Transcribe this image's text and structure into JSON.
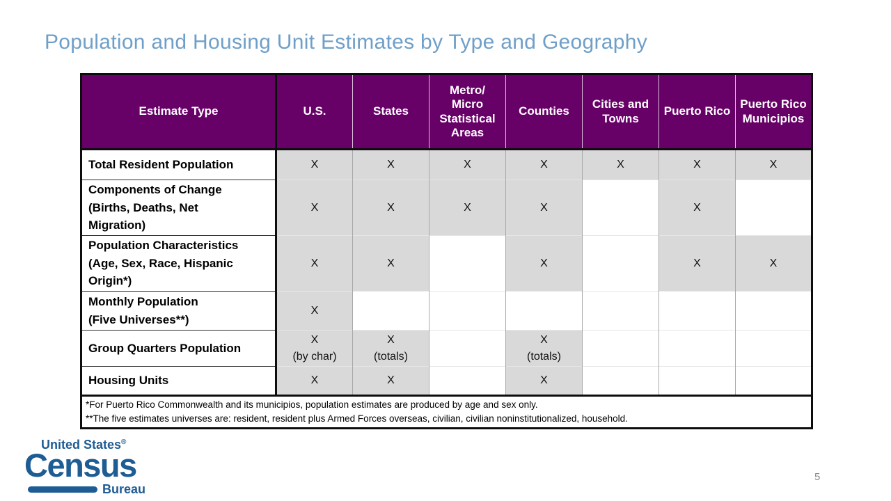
{
  "slide": {
    "title": "Population and Housing Unit Estimates by Type and Geography",
    "page_number": "5"
  },
  "colors": {
    "header_bg": "#670167",
    "shaded_cell": "#d9d9d9",
    "title_text": "#6f9fc8",
    "logo_blue": "#1e5c94",
    "page_number_text": "#8a8a8a"
  },
  "table": {
    "columns": [
      "Estimate Type",
      "U.S.",
      "States",
      "Metro/\nMicro\nStatistical\nAreas",
      "Counties",
      "Cities and\nTowns",
      "Puerto Rico",
      "Puerto Rico\nMunicipios"
    ],
    "rows": [
      {
        "label": "Total Resident Population",
        "cells": [
          "X",
          "X",
          "X",
          "X",
          "X",
          "X",
          "X"
        ]
      },
      {
        "label": "Components of Change\n(Births, Deaths, Net\nMigration)",
        "cells": [
          "X",
          "X",
          "X",
          "X",
          "",
          "X",
          ""
        ]
      },
      {
        "label": "Population Characteristics\n(Age, Sex, Race, Hispanic\nOrigin*)",
        "cells": [
          "X",
          "X",
          "",
          "X",
          "",
          "X",
          "X"
        ]
      },
      {
        "label": "Monthly Population\n(Five Universes**)",
        "cells": [
          "X",
          "",
          "",
          "",
          "",
          "",
          ""
        ]
      },
      {
        "label": "Group Quarters Population",
        "cells": [
          "X\n(by char)",
          "X\n(totals)",
          "",
          "X\n(totals)",
          "",
          "",
          ""
        ]
      },
      {
        "label": "Housing Units",
        "cells": [
          "X",
          "X",
          "",
          "X",
          "",
          "",
          ""
        ]
      }
    ],
    "footnotes": [
      "*For Puerto Rico Commonwealth and its municipios, population estimates are produced by age and sex only.",
      "**The five estimates universes are: resident, resident plus Armed Forces overseas, civilian, civilian noninstitutionalized, household."
    ]
  },
  "logo": {
    "line1": "United States",
    "registered": "®",
    "name": "Census",
    "line3": "Bureau"
  }
}
